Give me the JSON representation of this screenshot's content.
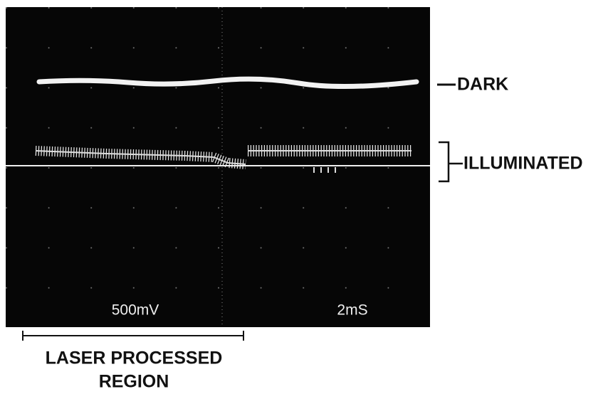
{
  "screen": {
    "volts_per_div": "500mV",
    "time_per_div": "2mS"
  },
  "labels": {
    "dark": "DARK",
    "illuminated": "ILLUMINATED",
    "region": [
      "LASER PROCESSED",
      "REGION"
    ]
  }
}
